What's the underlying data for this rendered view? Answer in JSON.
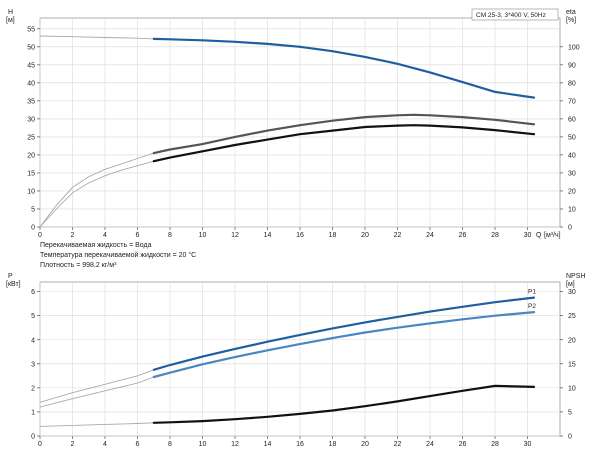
{
  "chart_data": [
    {
      "type": "line",
      "title": "CM 25-3, 3*400 V, 50Hz",
      "left_axis": {
        "label": "H",
        "unit": "[м]",
        "ticks": [
          0,
          5,
          10,
          15,
          20,
          25,
          30,
          35,
          40,
          45,
          50,
          55
        ],
        "ylim": [
          0,
          58
        ]
      },
      "right_axis": {
        "label": "eta",
        "unit": "[%]",
        "ticks": [
          0,
          10,
          20,
          30,
          40,
          50,
          60,
          70,
          80,
          90,
          100
        ],
        "ylim": [
          0,
          116
        ]
      },
      "x_axis": {
        "label": "Q",
        "unit": "[м³/ч]",
        "ticks": [
          0,
          2,
          4,
          6,
          8,
          10,
          12,
          14,
          16,
          18,
          20,
          22,
          24,
          26,
          28,
          30
        ],
        "xlim": [
          0,
          32
        ]
      },
      "grid": true,
      "series": [
        {
          "color": "#1f5fa0",
          "axis": "left",
          "points": [
            [
              0,
              53.0
            ],
            [
              2,
              52.8
            ],
            [
              4,
              52.6
            ],
            [
              6,
              52.4
            ],
            [
              7,
              52.2
            ],
            [
              8,
              52.1
            ],
            [
              10,
              51.8
            ],
            [
              12,
              51.4
            ],
            [
              14,
              50.8
            ],
            [
              16,
              50.0
            ],
            [
              18,
              48.8
            ],
            [
              20,
              47.2
            ],
            [
              22,
              45.3
            ],
            [
              24,
              42.9
            ],
            [
              26,
              40.2
            ],
            [
              28,
              37.5
            ],
            [
              30.4,
              35.9
            ]
          ],
          "faint_until_x": 7
        },
        {
          "color": "#555555",
          "axis": "right",
          "points": [
            [
              0,
              0
            ],
            [
              0.5,
              6
            ],
            [
              1,
              12
            ],
            [
              2,
              22
            ],
            [
              3,
              28
            ],
            [
              4,
              32
            ],
            [
              5,
              35
            ],
            [
              6,
              38
            ],
            [
              7,
              41
            ],
            [
              8,
              43
            ],
            [
              10,
              46
            ],
            [
              12,
              50
            ],
            [
              14,
              53.5
            ],
            [
              16,
              56.5
            ],
            [
              18,
              59
            ],
            [
              20,
              61
            ],
            [
              22,
              62
            ],
            [
              23,
              62.3
            ],
            [
              24,
              62
            ],
            [
              26,
              61
            ],
            [
              28,
              59.5
            ],
            [
              30.4,
              57
            ]
          ],
          "faint_until_x": 7
        },
        {
          "color": "#111111",
          "axis": "right",
          "points": [
            [
              0,
              0
            ],
            [
              0.5,
              5
            ],
            [
              1,
              10
            ],
            [
              2,
              19
            ],
            [
              3,
              24.5
            ],
            [
              4,
              28.5
            ],
            [
              5,
              31.5
            ],
            [
              6,
              34
            ],
            [
              7,
              36.5
            ],
            [
              8,
              38.5
            ],
            [
              10,
              42
            ],
            [
              12,
              45.5
            ],
            [
              14,
              48.5
            ],
            [
              16,
              51.5
            ],
            [
              18,
              53.5
            ],
            [
              20,
              55.5
            ],
            [
              22,
              56.3
            ],
            [
              23,
              56.5
            ],
            [
              24,
              56.3
            ],
            [
              26,
              55.3
            ],
            [
              28,
              53.8
            ],
            [
              30.4,
              51.5
            ]
          ],
          "faint_until_x": 7
        }
      ],
      "notes": [
        "Перекачиваемая жидкость = Вода",
        "Температура перекачиваемой жидкости = 20 °C",
        "Плотность = 998.2 кг/м³"
      ]
    },
    {
      "type": "line",
      "left_axis": {
        "label": "P",
        "unit": "[кВт]",
        "ticks": [
          0,
          1,
          2,
          3,
          4,
          5,
          6
        ],
        "ylim": [
          0,
          6.4
        ]
      },
      "right_axis": {
        "label": "NPSH",
        "unit": "[м]",
        "ticks": [
          0,
          5,
          10,
          15,
          20,
          25,
          30
        ],
        "ylim": [
          0,
          32
        ]
      },
      "x_axis": {
        "xlim": [
          0,
          32
        ],
        "ticks": [
          0,
          2,
          4,
          6,
          8,
          10,
          12,
          14,
          16,
          18,
          20,
          22,
          24,
          26,
          28,
          30
        ]
      },
      "grid": true,
      "series": [
        {
          "name": "P1",
          "color": "#1f5fa0",
          "axis": "left",
          "points": [
            [
              0,
              1.4
            ],
            [
              2,
              1.8
            ],
            [
              4,
              2.15
            ],
            [
              6,
              2.5
            ],
            [
              7,
              2.75
            ],
            [
              8,
              2.95
            ],
            [
              10,
              3.3
            ],
            [
              12,
              3.62
            ],
            [
              14,
              3.92
            ],
            [
              16,
              4.2
            ],
            [
              18,
              4.47
            ],
            [
              20,
              4.72
            ],
            [
              22,
              4.95
            ],
            [
              24,
              5.17
            ],
            [
              26,
              5.37
            ],
            [
              28,
              5.56
            ],
            [
              30.4,
              5.75
            ]
          ],
          "faint_until_x": 7
        },
        {
          "name": "P2",
          "color": "#4a86c0",
          "axis": "left",
          "points": [
            [
              0,
              1.2
            ],
            [
              2,
              1.55
            ],
            [
              4,
              1.88
            ],
            [
              6,
              2.2
            ],
            [
              7,
              2.45
            ],
            [
              8,
              2.63
            ],
            [
              10,
              2.98
            ],
            [
              12,
              3.28
            ],
            [
              14,
              3.56
            ],
            [
              16,
              3.82
            ],
            [
              18,
              4.07
            ],
            [
              20,
              4.3
            ],
            [
              22,
              4.5
            ],
            [
              24,
              4.68
            ],
            [
              26,
              4.85
            ],
            [
              28,
              5.0
            ],
            [
              30.4,
              5.15
            ]
          ],
          "faint_until_x": 7
        },
        {
          "color": "#111111",
          "axis": "right",
          "points": [
            [
              0,
              2.0
            ],
            [
              2,
              2.2
            ],
            [
              4,
              2.4
            ],
            [
              6,
              2.6
            ],
            [
              7,
              2.75
            ],
            [
              8,
              2.85
            ],
            [
              10,
              3.1
            ],
            [
              12,
              3.5
            ],
            [
              14,
              4.0
            ],
            [
              16,
              4.6
            ],
            [
              18,
              5.3
            ],
            [
              20,
              6.2
            ],
            [
              22,
              7.2
            ],
            [
              24,
              8.3
            ],
            [
              26,
              9.4
            ],
            [
              28,
              10.4
            ],
            [
              30.4,
              10.2
            ]
          ],
          "faint_until_x": 7
        }
      ]
    }
  ]
}
